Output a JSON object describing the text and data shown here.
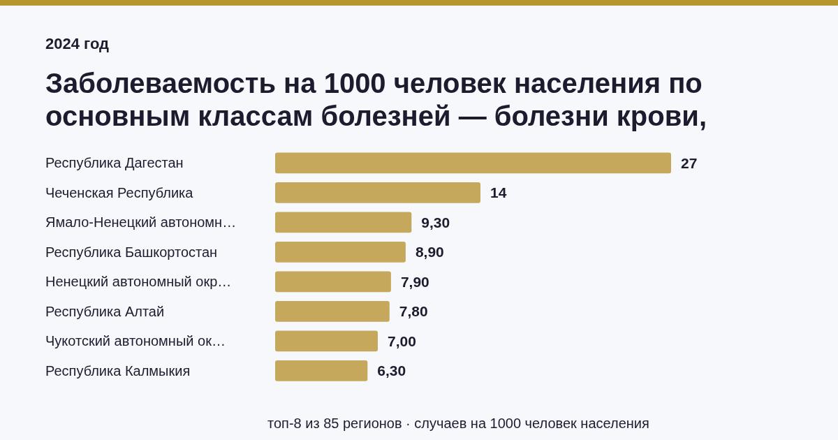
{
  "chart_data": {
    "type": "bar",
    "orientation": "horizontal",
    "title": "Заболеваемость на 1000 человек населения по основным классам болезней — болезни крови,",
    "subtitle": "2024 год",
    "categories": [
      "Республика Дагестан",
      "Чеченская Республика",
      "Ямало-Ненецкий автономн…",
      "Республика Башкортостан",
      "Ненецкий автономный окр…",
      "Республика Алтай",
      "Чукотский автономный ок…",
      "Республика Калмыкия"
    ],
    "values": [
      27,
      14,
      9.3,
      8.9,
      7.9,
      7.8,
      7.0,
      6.3
    ],
    "value_labels": [
      "27",
      "14",
      "9,30",
      "8,90",
      "7,90",
      "7,80",
      "7,00",
      "6,30"
    ],
    "color": "#c5a85c",
    "annotations": [
      "топ-8 из 85 регионов · случаев на 1000 человек населения"
    ]
  }
}
